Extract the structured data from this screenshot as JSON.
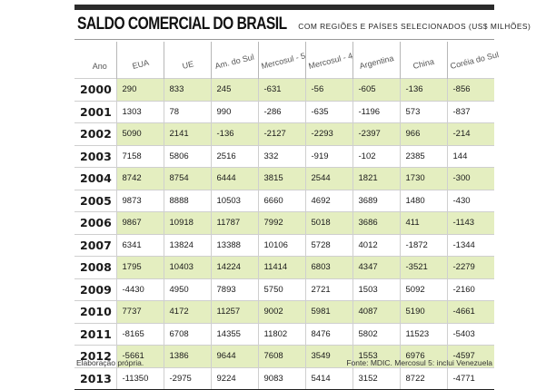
{
  "title": {
    "main": "SALDO COMERCIAL DO BRASIL",
    "subtitle": "COM REGIÕES E PAÍSES SELECIONADOS   (US$ MILHÕES)"
  },
  "columns": [
    "Ano",
    "EUA",
    "UE",
    "Am. do Sul",
    "Mercosul - 5",
    "Mercosul - 4",
    "Argentina",
    "China",
    "Coréia do Sul"
  ],
  "rows": [
    {
      "year": "2000",
      "values": [
        "290",
        "833",
        "245",
        "-631",
        "-56",
        "-605",
        "-136",
        "-856"
      ]
    },
    {
      "year": "2001",
      "values": [
        "1303",
        "78",
        "990",
        "-286",
        "-635",
        "-1196",
        "573",
        "-837"
      ]
    },
    {
      "year": "2002",
      "values": [
        "5090",
        "2141",
        "-136",
        "-2127",
        "-2293",
        "-2397",
        "966",
        "-214"
      ]
    },
    {
      "year": "2003",
      "values": [
        "7158",
        "5806",
        "2516",
        "332",
        "-919",
        "-102",
        "2385",
        "144"
      ]
    },
    {
      "year": "2004",
      "values": [
        "8742",
        "8754",
        "6444",
        "3815",
        "2544",
        "1821",
        "1730",
        "-300"
      ]
    },
    {
      "year": "2005",
      "values": [
        "9873",
        "8888",
        "10503",
        "6660",
        "4692",
        "3689",
        "1480",
        "-430"
      ]
    },
    {
      "year": "2006",
      "values": [
        "9867",
        "10918",
        "11787",
        "7992",
        "5018",
        "3686",
        "411",
        "-1143"
      ]
    },
    {
      "year": "2007",
      "values": [
        "6341",
        "13824",
        "13388",
        "10106",
        "5728",
        "4012",
        "-1872",
        "-1344"
      ]
    },
    {
      "year": "2008",
      "values": [
        "1795",
        "10403",
        "14224",
        "11414",
        "6803",
        "4347",
        "-3521",
        "-2279"
      ]
    },
    {
      "year": "2009",
      "values": [
        "-4430",
        "4950",
        "7893",
        "5750",
        "2721",
        "1503",
        "5092",
        "-2160"
      ]
    },
    {
      "year": "2010",
      "values": [
        "7737",
        "4172",
        "11257",
        "9002",
        "5981",
        "4087",
        "5190",
        "-4661"
      ]
    },
    {
      "year": "2011",
      "values": [
        "-8165",
        "6708",
        "14355",
        "11802",
        "8476",
        "5802",
        "11523",
        "-5403"
      ]
    },
    {
      "year": "2012",
      "values": [
        "-5661",
        "1386",
        "9644",
        "7608",
        "3549",
        "1553",
        "6976",
        "-4597"
      ]
    },
    {
      "year": "2013",
      "values": [
        "-11350",
        "-2975",
        "9224",
        "9083",
        "5414",
        "3152",
        "8722",
        "-4771"
      ]
    }
  ],
  "footer": {
    "left": "Elaboração própria.",
    "right": "Fonte: MDIC. Mercosul 5: inclui Venezuela"
  },
  "colors": {
    "row_shade": "#e4eec0",
    "header_bar": "#2b2b2b"
  }
}
